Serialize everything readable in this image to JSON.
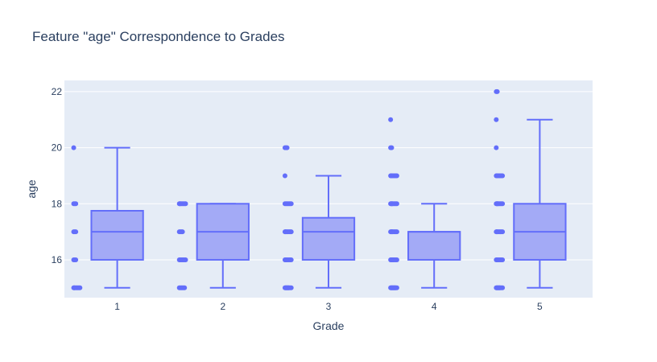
{
  "chart_data": {
    "type": "box",
    "title": "Feature \"age\" Correspondence to Grades",
    "xlabel": "Grade",
    "ylabel": "age",
    "categories": [
      "1",
      "2",
      "3",
      "4",
      "5"
    ],
    "ylim": [
      14.65,
      22.4
    ],
    "yticks": [
      16,
      18,
      20,
      22
    ],
    "grid": true,
    "colors": {
      "plot_bg": "#e5ecf6",
      "grid": "#ffffff",
      "box_line": "#636efa",
      "box_fill": "#a3aaf6",
      "point": "#636efa",
      "text": "#2a3f5f"
    },
    "boxes": [
      {
        "category": "1",
        "q1": 16,
        "median": 17,
        "q3": 17.75,
        "lowerfence": 15,
        "upperfence": 20,
        "points": [
          15,
          15,
          15,
          15,
          15,
          15,
          15,
          15,
          16,
          16,
          16,
          17,
          17,
          17,
          18,
          18,
          18,
          20
        ]
      },
      {
        "category": "2",
        "q1": 16,
        "median": 17,
        "q3": 18,
        "lowerfence": 15,
        "upperfence": 18,
        "points": [
          15,
          15,
          15,
          15,
          15,
          15,
          16,
          16,
          16,
          16,
          16,
          16,
          16,
          16,
          17,
          17,
          17,
          17,
          18,
          18,
          18,
          18,
          18,
          18,
          18,
          18
        ]
      },
      {
        "category": "3",
        "q1": 16,
        "median": 17,
        "q3": 17.5,
        "lowerfence": 15,
        "upperfence": 19,
        "points": [
          15,
          15,
          15,
          15,
          15,
          15,
          15,
          15,
          15,
          15,
          15,
          16,
          16,
          16,
          16,
          16,
          16,
          16,
          16,
          16,
          17,
          17,
          17,
          17,
          17,
          17,
          17,
          17,
          18,
          18,
          18,
          18,
          18,
          18,
          18,
          19,
          20,
          20,
          20
        ]
      },
      {
        "category": "4",
        "q1": 16,
        "median": 17,
        "q3": 17,
        "lowerfence": 15,
        "upperfence": 18,
        "points": [
          15,
          15,
          15,
          15,
          15,
          15,
          15,
          15,
          15,
          15,
          15,
          15,
          16,
          16,
          16,
          16,
          16,
          16,
          16,
          16,
          16,
          16,
          17,
          17,
          17,
          17,
          17,
          17,
          17,
          17,
          17,
          18,
          18,
          18,
          18,
          18,
          18,
          18,
          18,
          18,
          19,
          19,
          19,
          19,
          19,
          19,
          19,
          19,
          20,
          20,
          21
        ]
      },
      {
        "category": "5",
        "q1": 16,
        "median": 17,
        "q3": 18,
        "lowerfence": 15,
        "upperfence": 21,
        "points": [
          15,
          15,
          15,
          15,
          15,
          15,
          15,
          15,
          15,
          15,
          15,
          16,
          16,
          16,
          16,
          16,
          16,
          16,
          16,
          16,
          17,
          17,
          17,
          17,
          17,
          17,
          17,
          17,
          18,
          18,
          18,
          18,
          18,
          18,
          18,
          18,
          18,
          19,
          19,
          19,
          19,
          19,
          19,
          19,
          19,
          20,
          21,
          22,
          22
        ]
      }
    ]
  }
}
